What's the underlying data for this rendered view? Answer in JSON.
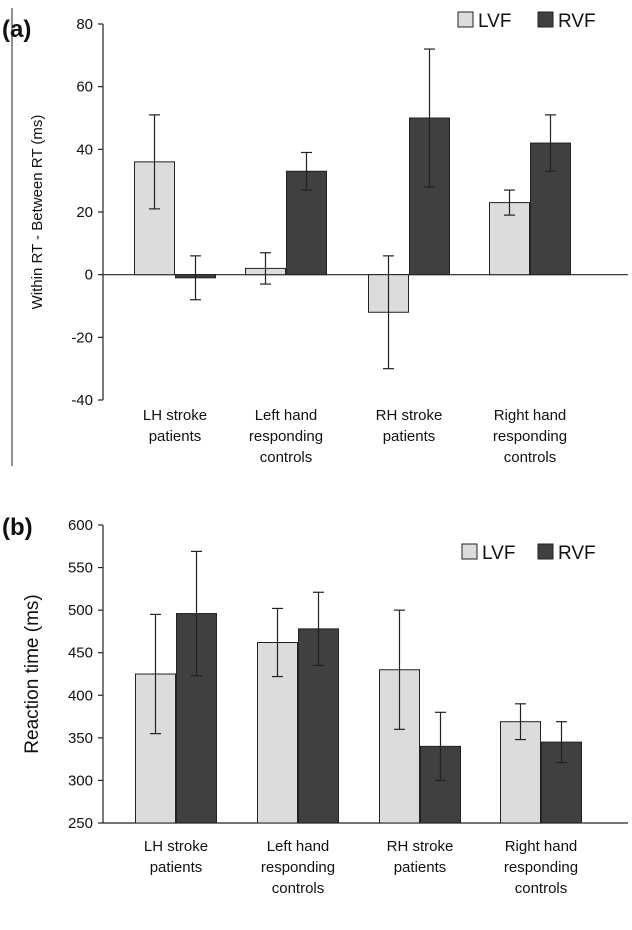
{
  "chart_data": [
    {
      "type": "bar",
      "panel_label": "(a)",
      "categories": [
        [
          "LH stroke",
          "patients"
        ],
        [
          "Left hand",
          "responding",
          "controls"
        ],
        [
          "RH stroke",
          "patients"
        ],
        [
          "Right hand",
          "responding",
          "controls"
        ]
      ],
      "series": [
        {
          "name": "LVF",
          "values": [
            36,
            2,
            -12,
            23
          ],
          "error": [
            15,
            5,
            18,
            4
          ]
        },
        {
          "name": "RVF",
          "values": [
            -1,
            33,
            50,
            42
          ],
          "error": [
            7,
            6,
            22,
            9
          ]
        }
      ],
      "ylabel": "Within RT - Between RT (ms)",
      "ylim": [
        -40,
        80
      ],
      "yticks": [
        80,
        60,
        40,
        20,
        0,
        -20,
        -40
      ],
      "legend": "top-right",
      "colors": {
        "LVF": "#dcdcdc",
        "RVF": "#404040"
      }
    },
    {
      "type": "bar",
      "panel_label": "(b)",
      "categories": [
        [
          "LH stroke",
          "patients"
        ],
        [
          "Left hand",
          "responding",
          "controls"
        ],
        [
          "RH stroke",
          "patients"
        ],
        [
          "Right hand",
          "responding",
          "controls"
        ]
      ],
      "series": [
        {
          "name": "LVF",
          "values": [
            425,
            462,
            430,
            369
          ],
          "error": [
            70,
            40,
            70,
            21
          ]
        },
        {
          "name": "RVF",
          "values": [
            496,
            478,
            340,
            345
          ],
          "error": [
            73,
            43,
            40,
            24
          ]
        }
      ],
      "ylabel": "Reaction time (ms)",
      "ylim": [
        250,
        600
      ],
      "yticks": [
        600,
        550,
        500,
        450,
        400,
        350,
        300,
        250
      ],
      "legend": "top-right",
      "colors": {
        "LVF": "#dcdcdc",
        "RVF": "#404040"
      }
    }
  ]
}
